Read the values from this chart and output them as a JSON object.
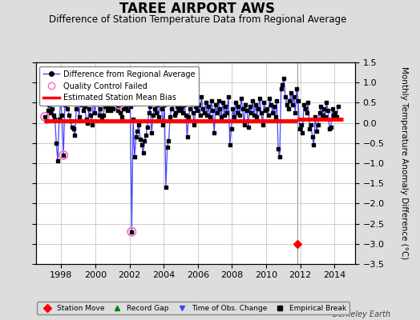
{
  "title": "TAREE AIRPORT AWS",
  "subtitle": "Difference of Station Temperature Data from Regional Average",
  "ylabel": "Monthly Temperature Anomaly Difference (°C)",
  "watermark": "Berkeley Earth",
  "xlim": [
    1996.5,
    2015.2
  ],
  "ylim": [
    -3.5,
    1.5
  ],
  "yticks": [
    -3.0,
    -2.5,
    -2.0,
    -1.5,
    -1.0,
    -0.5,
    0.0,
    0.5,
    1.0
  ],
  "xticks": [
    1998,
    2000,
    2002,
    2004,
    2006,
    2008,
    2010,
    2012,
    2014
  ],
  "mean_bias_before": 0.05,
  "mean_bias_after": 0.1,
  "mean_bias_break": 2011.83,
  "mean_bias_start": 1997.0,
  "mean_bias_end1": 2011.83,
  "mean_bias_end2": 2014.5,
  "mean_bias_color": "#ff0000",
  "line_color": "#4444ff",
  "dot_color": "#000000",
  "qc_failed_color": "#ff66cc",
  "background_color": "#dddddd",
  "plot_bg_color": "#ffffff",
  "grid_color": "#bbbbbb",
  "vline_x": 2011.83,
  "vline_color": "#999999",
  "station_move_x": 2011.83,
  "station_move_y": -3.0,
  "times": [
    1997.042,
    1997.125,
    1997.208,
    1997.292,
    1997.375,
    1997.458,
    1997.542,
    1997.625,
    1997.708,
    1997.792,
    1997.875,
    1997.958,
    1998.042,
    1998.125,
    1998.208,
    1998.292,
    1998.375,
    1998.458,
    1998.542,
    1998.625,
    1998.708,
    1998.792,
    1998.875,
    1998.958,
    1999.042,
    1999.125,
    1999.208,
    1999.292,
    1999.375,
    1999.458,
    1999.542,
    1999.625,
    1999.708,
    1999.792,
    1999.875,
    1999.958,
    2000.042,
    2000.125,
    2000.208,
    2000.292,
    2000.375,
    2000.458,
    2000.542,
    2000.625,
    2000.708,
    2000.792,
    2000.875,
    2000.958,
    2001.042,
    2001.125,
    2001.208,
    2001.292,
    2001.375,
    2001.458,
    2001.542,
    2001.625,
    2001.708,
    2001.792,
    2001.875,
    2001.958,
    2002.042,
    2002.125,
    2002.208,
    2002.292,
    2002.375,
    2002.458,
    2002.542,
    2002.625,
    2002.708,
    2002.792,
    2002.875,
    2002.958,
    2003.042,
    2003.125,
    2003.208,
    2003.292,
    2003.375,
    2003.458,
    2003.542,
    2003.625,
    2003.708,
    2003.792,
    2003.875,
    2003.958,
    2004.042,
    2004.125,
    2004.208,
    2004.292,
    2004.375,
    2004.458,
    2004.542,
    2004.625,
    2004.708,
    2004.792,
    2004.875,
    2004.958,
    2005.042,
    2005.125,
    2005.208,
    2005.292,
    2005.375,
    2005.458,
    2005.542,
    2005.625,
    2005.708,
    2005.792,
    2005.875,
    2005.958,
    2006.042,
    2006.125,
    2006.208,
    2006.292,
    2006.375,
    2006.458,
    2006.542,
    2006.625,
    2006.708,
    2006.792,
    2006.875,
    2006.958,
    2007.042,
    2007.125,
    2007.208,
    2007.292,
    2007.375,
    2007.458,
    2007.542,
    2007.625,
    2007.708,
    2007.792,
    2007.875,
    2007.958,
    2008.042,
    2008.125,
    2008.208,
    2008.292,
    2008.375,
    2008.458,
    2008.542,
    2008.625,
    2008.708,
    2008.792,
    2008.875,
    2008.958,
    2009.042,
    2009.125,
    2009.208,
    2009.292,
    2009.375,
    2009.458,
    2009.542,
    2009.625,
    2009.708,
    2009.792,
    2009.875,
    2009.958,
    2010.042,
    2010.125,
    2010.208,
    2010.292,
    2010.375,
    2010.458,
    2010.542,
    2010.625,
    2010.708,
    2010.792,
    2010.875,
    2010.958,
    2011.042,
    2011.125,
    2011.208,
    2011.292,
    2011.375,
    2011.458,
    2011.542,
    2011.625,
    2011.708,
    2011.792,
    2011.875,
    2011.958,
    2012.042,
    2012.125,
    2012.208,
    2012.292,
    2012.375,
    2012.458,
    2012.542,
    2012.625,
    2012.708,
    2012.792,
    2012.875,
    2012.958,
    2013.042,
    2013.125,
    2013.208,
    2013.292,
    2013.375,
    2013.458,
    2013.542,
    2013.625,
    2013.708,
    2013.792,
    2013.875,
    2013.958,
    2014.042,
    2014.125,
    2014.208
  ],
  "values": [
    0.15,
    0.05,
    0.3,
    0.45,
    0.25,
    0.35,
    0.2,
    0.1,
    -0.5,
    -0.95,
    0.1,
    0.5,
    0.2,
    -0.8,
    0.45,
    0.55,
    0.35,
    0.2,
    0.05,
    -0.1,
    -0.15,
    -0.3,
    0.35,
    0.55,
    0.15,
    0.7,
    0.45,
    0.3,
    0.4,
    0.1,
    0.0,
    0.35,
    0.2,
    -0.05,
    0.6,
    0.25,
    0.5,
    0.6,
    0.2,
    0.35,
    0.1,
    0.2,
    0.4,
    0.55,
    0.3,
    0.4,
    0.3,
    0.45,
    0.35,
    0.6,
    0.4,
    0.3,
    0.45,
    0.25,
    0.15,
    0.35,
    0.55,
    0.4,
    0.3,
    0.45,
    0.4,
    -2.7,
    0.1,
    -0.85,
    -0.35,
    -0.2,
    -0.05,
    -0.4,
    -0.55,
    -0.75,
    -0.45,
    -0.3,
    -0.1,
    0.25,
    0.4,
    -0.25,
    0.2,
    0.35,
    0.25,
    0.45,
    0.15,
    0.5,
    0.35,
    -0.05,
    0.45,
    -1.6,
    -0.6,
    -0.45,
    0.15,
    0.35,
    0.5,
    0.2,
    0.25,
    0.4,
    0.3,
    0.45,
    0.35,
    0.25,
    0.45,
    0.2,
    -0.35,
    0.15,
    0.35,
    0.55,
    0.25,
    -0.05,
    0.4,
    0.3,
    0.45,
    0.2,
    0.65,
    0.35,
    0.25,
    0.5,
    0.2,
    0.4,
    0.15,
    0.55,
    0.3,
    -0.25,
    0.45,
    0.25,
    0.55,
    0.35,
    0.15,
    0.5,
    0.2,
    0.4,
    0.25,
    0.65,
    -0.55,
    -0.15,
    0.35,
    0.15,
    0.5,
    0.25,
    0.4,
    0.2,
    0.6,
    0.35,
    -0.05,
    0.45,
    0.3,
    -0.1,
    0.4,
    0.25,
    0.55,
    0.2,
    0.45,
    0.15,
    0.35,
    0.6,
    0.25,
    -0.05,
    0.5,
    0.3,
    0.35,
    0.2,
    0.6,
    0.45,
    0.25,
    0.4,
    0.15,
    0.55,
    -0.65,
    -0.85,
    0.85,
    0.95,
    1.1,
    0.65,
    0.45,
    0.35,
    0.55,
    0.75,
    0.45,
    0.65,
    0.25,
    0.85,
    0.55,
    -0.15,
    -0.05,
    -0.25,
    0.45,
    0.35,
    0.25,
    0.5,
    -0.15,
    -0.05,
    -0.35,
    -0.55,
    0.15,
    -0.2,
    -0.05,
    0.25,
    0.4,
    0.2,
    0.35,
    0.15,
    0.5,
    0.3,
    -0.15,
    -0.1,
    0.35,
    0.2,
    0.25,
    0.15,
    0.4
  ],
  "qc_failed_times": [
    1997.042,
    1998.125,
    1999.125,
    1999.875,
    2001.375,
    2002.125
  ],
  "qc_failed_values": [
    0.15,
    -0.8,
    0.7,
    0.6,
    0.45,
    -2.7
  ]
}
